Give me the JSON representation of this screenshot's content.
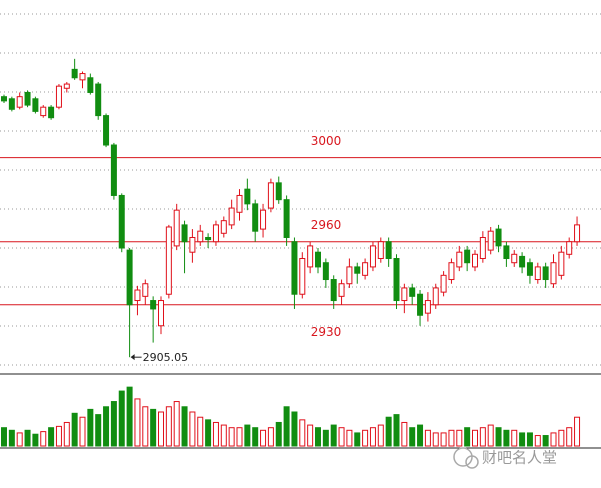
{
  "chart_data": {
    "type": "candlestick",
    "open": [
      3029,
      3028,
      3024,
      3031,
      3028,
      3020,
      3024,
      3024,
      3033,
      3042,
      3037,
      3038,
      3035,
      3020,
      3006,
      2982,
      2956,
      2932,
      2934,
      2932,
      2920,
      2935,
      2958,
      2968,
      2955,
      2960,
      2962,
      2960,
      2964,
      2968,
      2974,
      2985,
      2978,
      2966,
      2976,
      2988,
      2980,
      2960,
      2935,
      2948,
      2955,
      2950,
      2942,
      2934,
      2940,
      2948,
      2944,
      2948,
      2952,
      2960,
      2952,
      2932,
      2938,
      2935,
      2926,
      2930,
      2936,
      2942,
      2948,
      2956,
      2948,
      2952,
      2956,
      2966,
      2958,
      2950,
      2953,
      2950,
      2942,
      2948,
      2940,
      2944,
      2954,
      2960
    ],
    "high": [
      3030,
      3029,
      3031,
      3032,
      3029,
      3025,
      3025,
      3035,
      3036,
      3047,
      3041,
      3040,
      3036,
      3021,
      3007,
      2983,
      2957,
      2939,
      2942,
      2934,
      2934,
      2968,
      2978,
      2970,
      2966,
      2968,
      2964,
      2970,
      2972,
      2980,
      2985,
      2990,
      2980,
      2978,
      2990,
      2991,
      2982,
      2962,
      2955,
      2960,
      2957,
      2952,
      2944,
      2942,
      2952,
      2950,
      2952,
      2960,
      2962,
      2962,
      2954,
      2940,
      2940,
      2937,
      2936,
      2940,
      2946,
      2952,
      2958,
      2958,
      2956,
      2965,
      2967,
      2968,
      2960,
      2956,
      2955,
      2952,
      2950,
      2950,
      2954,
      2958,
      2962,
      2972
    ],
    "low": [
      3026,
      3022,
      3023,
      3024,
      3021,
      3019,
      3018,
      3023,
      3031,
      3037,
      3033,
      3030,
      3018,
      3005,
      2980,
      2955,
      2905.05,
      2925,
      2930,
      2912,
      2916,
      2933,
      2956,
      2945,
      2950,
      2958,
      2957,
      2958,
      2962,
      2966,
      2970,
      2975,
      2960,
      2962,
      2974,
      2978,
      2958,
      2928,
      2933,
      2945,
      2945,
      2938,
      2928,
      2930,
      2938,
      2940,
      2942,
      2946,
      2950,
      2948,
      2928,
      2926,
      2930,
      2920,
      2922,
      2928,
      2934,
      2940,
      2946,
      2946,
      2946,
      2950,
      2954,
      2955,
      2948,
      2948,
      2945,
      2940,
      2940,
      2938,
      2938,
      2942,
      2952,
      2958
    ],
    "close": [
      3027,
      3023,
      3029,
      3025,
      3022,
      3024,
      3019,
      3034,
      3035,
      3038,
      3040,
      3031,
      3020,
      3006,
      2982,
      2957,
      2930,
      2937,
      2940,
      2928,
      2932,
      2967,
      2975,
      2960,
      2962,
      2965,
      2961,
      2968,
      2970,
      2976,
      2982,
      2978,
      2965,
      2975,
      2988,
      2980,
      2962,
      2935,
      2952,
      2958,
      2948,
      2942,
      2932,
      2940,
      2948,
      2945,
      2950,
      2958,
      2960,
      2952,
      2932,
      2938,
      2934,
      2925,
      2932,
      2938,
      2944,
      2950,
      2955,
      2950,
      2954,
      2962,
      2965,
      2958,
      2952,
      2954,
      2948,
      2944,
      2948,
      2942,
      2950,
      2955,
      2960,
      2968
    ],
    "volume": [
      14,
      12,
      10,
      12,
      9,
      11,
      14,
      15,
      18,
      25,
      22,
      28,
      24,
      30,
      34,
      42,
      45,
      36,
      30,
      28,
      26,
      30,
      34,
      30,
      26,
      22,
      20,
      18,
      16,
      14,
      14,
      16,
      14,
      12,
      14,
      18,
      30,
      26,
      20,
      16,
      14,
      12,
      16,
      14,
      12,
      10,
      12,
      14,
      16,
      22,
      24,
      18,
      14,
      16,
      12,
      10,
      10,
      12,
      12,
      14,
      12,
      14,
      16,
      14,
      12,
      12,
      10,
      10,
      8,
      8,
      10,
      12,
      14,
      22
    ],
    "ylim": [
      2898,
      3075
    ],
    "volume_ylim": [
      0,
      52
    ],
    "up_color": "#e0101a",
    "down_color": "#118d11",
    "grid": true,
    "reference_lines": [
      3000,
      2960,
      2930
    ],
    "reference_color": "#d8161e",
    "watermark": "财吧名人堂"
  }
}
